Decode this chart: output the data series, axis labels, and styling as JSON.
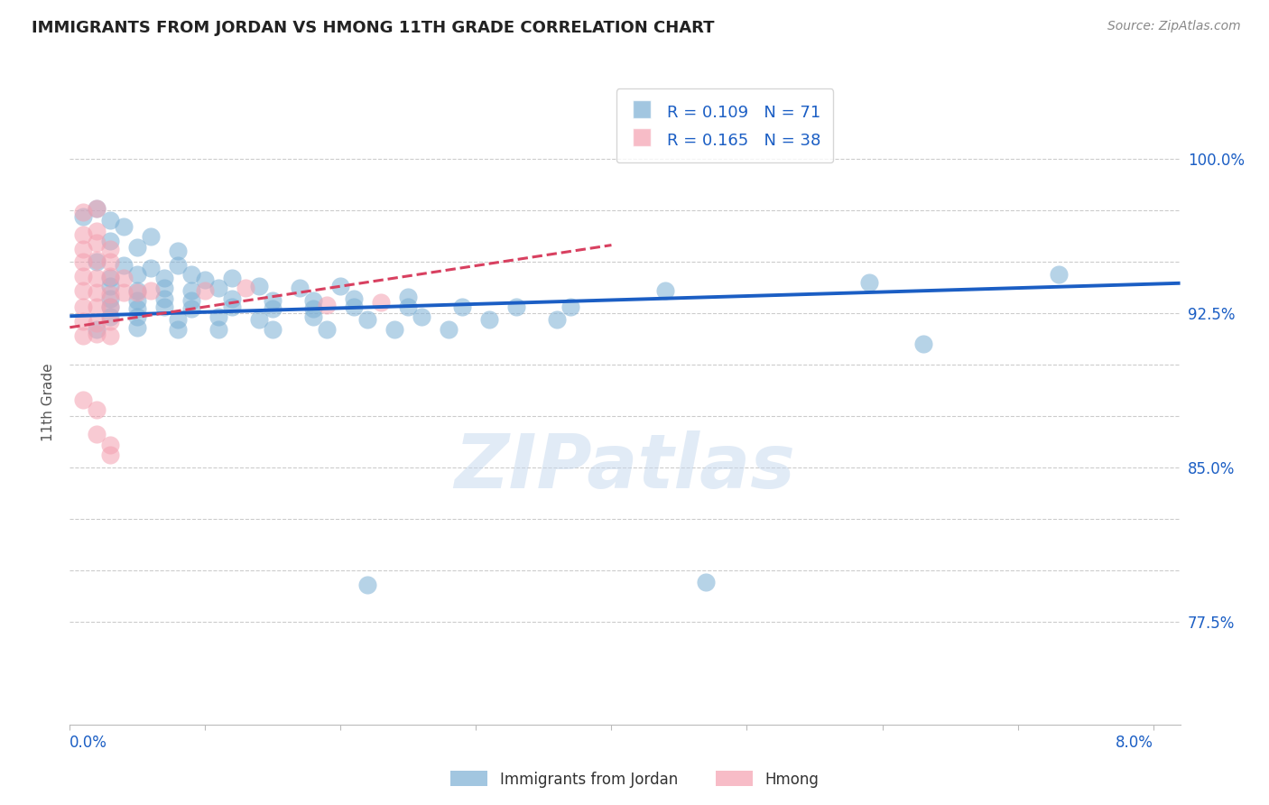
{
  "title": "IMMIGRANTS FROM JORDAN VS HMONG 11TH GRADE CORRELATION CHART",
  "source": "Source: ZipAtlas.com",
  "ylabel_label": "11th Grade",
  "R_jordan": 0.109,
  "N_jordan": 71,
  "R_hmong": 0.165,
  "N_hmong": 38,
  "jordan_color": "#7BAFD4",
  "hmong_color": "#F4A0B0",
  "jordan_line_color": "#1B5EC4",
  "hmong_line_color": "#D84060",
  "legend_label_jordan": "Immigrants from Jordan",
  "legend_label_hmong": "Hmong",
  "xlim": [
    0.0,
    0.082
  ],
  "ylim": [
    0.725,
    1.038
  ],
  "y_ticks": [
    0.775,
    0.8,
    0.825,
    0.85,
    0.875,
    0.9,
    0.925,
    0.95,
    0.975,
    1.0
  ],
  "y_tick_labels": [
    "77.5%",
    "",
    "",
    "85.0%",
    "",
    "",
    "92.5%",
    "",
    "",
    "100.0%"
  ],
  "jordan_scatter": [
    [
      0.001,
      0.972
    ],
    [
      0.003,
      0.97
    ],
    [
      0.002,
      0.976
    ],
    [
      0.004,
      0.967
    ],
    [
      0.003,
      0.96
    ],
    [
      0.005,
      0.957
    ],
    [
      0.006,
      0.962
    ],
    [
      0.008,
      0.955
    ],
    [
      0.002,
      0.95
    ],
    [
      0.004,
      0.948
    ],
    [
      0.006,
      0.947
    ],
    [
      0.008,
      0.948
    ],
    [
      0.003,
      0.942
    ],
    [
      0.005,
      0.944
    ],
    [
      0.007,
      0.942
    ],
    [
      0.009,
      0.944
    ],
    [
      0.01,
      0.941
    ],
    [
      0.012,
      0.942
    ],
    [
      0.003,
      0.938
    ],
    [
      0.005,
      0.936
    ],
    [
      0.007,
      0.937
    ],
    [
      0.009,
      0.936
    ],
    [
      0.011,
      0.937
    ],
    [
      0.014,
      0.938
    ],
    [
      0.017,
      0.937
    ],
    [
      0.02,
      0.938
    ],
    [
      0.003,
      0.932
    ],
    [
      0.005,
      0.931
    ],
    [
      0.007,
      0.932
    ],
    [
      0.009,
      0.931
    ],
    [
      0.012,
      0.932
    ],
    [
      0.015,
      0.931
    ],
    [
      0.018,
      0.931
    ],
    [
      0.021,
      0.932
    ],
    [
      0.025,
      0.933
    ],
    [
      0.003,
      0.928
    ],
    [
      0.005,
      0.927
    ],
    [
      0.007,
      0.928
    ],
    [
      0.009,
      0.927
    ],
    [
      0.012,
      0.928
    ],
    [
      0.015,
      0.927
    ],
    [
      0.018,
      0.927
    ],
    [
      0.021,
      0.928
    ],
    [
      0.025,
      0.928
    ],
    [
      0.029,
      0.928
    ],
    [
      0.033,
      0.928
    ],
    [
      0.037,
      0.928
    ],
    [
      0.003,
      0.923
    ],
    [
      0.005,
      0.923
    ],
    [
      0.008,
      0.922
    ],
    [
      0.011,
      0.923
    ],
    [
      0.014,
      0.922
    ],
    [
      0.018,
      0.923
    ],
    [
      0.022,
      0.922
    ],
    [
      0.026,
      0.923
    ],
    [
      0.031,
      0.922
    ],
    [
      0.036,
      0.922
    ],
    [
      0.002,
      0.917
    ],
    [
      0.005,
      0.918
    ],
    [
      0.008,
      0.917
    ],
    [
      0.011,
      0.917
    ],
    [
      0.015,
      0.917
    ],
    [
      0.019,
      0.917
    ],
    [
      0.024,
      0.917
    ],
    [
      0.028,
      0.917
    ],
    [
      0.044,
      0.936
    ],
    [
      0.059,
      0.94
    ],
    [
      0.073,
      0.944
    ],
    [
      0.063,
      0.91
    ],
    [
      0.022,
      0.793
    ],
    [
      0.047,
      0.794
    ]
  ],
  "hmong_scatter": [
    [
      0.001,
      0.974
    ],
    [
      0.002,
      0.976
    ],
    [
      0.001,
      0.963
    ],
    [
      0.002,
      0.965
    ],
    [
      0.001,
      0.956
    ],
    [
      0.002,
      0.959
    ],
    [
      0.003,
      0.956
    ],
    [
      0.001,
      0.95
    ],
    [
      0.002,
      0.951
    ],
    [
      0.003,
      0.95
    ],
    [
      0.001,
      0.943
    ],
    [
      0.002,
      0.942
    ],
    [
      0.003,
      0.943
    ],
    [
      0.004,
      0.942
    ],
    [
      0.001,
      0.936
    ],
    [
      0.002,
      0.935
    ],
    [
      0.003,
      0.934
    ],
    [
      0.004,
      0.935
    ],
    [
      0.005,
      0.935
    ],
    [
      0.006,
      0.936
    ],
    [
      0.001,
      0.928
    ],
    [
      0.002,
      0.928
    ],
    [
      0.003,
      0.928
    ],
    [
      0.001,
      0.921
    ],
    [
      0.002,
      0.92
    ],
    [
      0.003,
      0.921
    ],
    [
      0.001,
      0.914
    ],
    [
      0.002,
      0.915
    ],
    [
      0.003,
      0.914
    ],
    [
      0.01,
      0.936
    ],
    [
      0.013,
      0.937
    ],
    [
      0.019,
      0.929
    ],
    [
      0.023,
      0.93
    ],
    [
      0.001,
      0.883
    ],
    [
      0.002,
      0.878
    ],
    [
      0.002,
      0.866
    ],
    [
      0.003,
      0.861
    ],
    [
      0.003,
      0.856
    ]
  ],
  "jordan_trendline_x": [
    0.0,
    0.082
  ],
  "jordan_trendline_y": [
    0.9235,
    0.9395
  ],
  "hmong_trendline_x": [
    0.0,
    0.04
  ],
  "hmong_trendline_y": [
    0.918,
    0.958
  ]
}
